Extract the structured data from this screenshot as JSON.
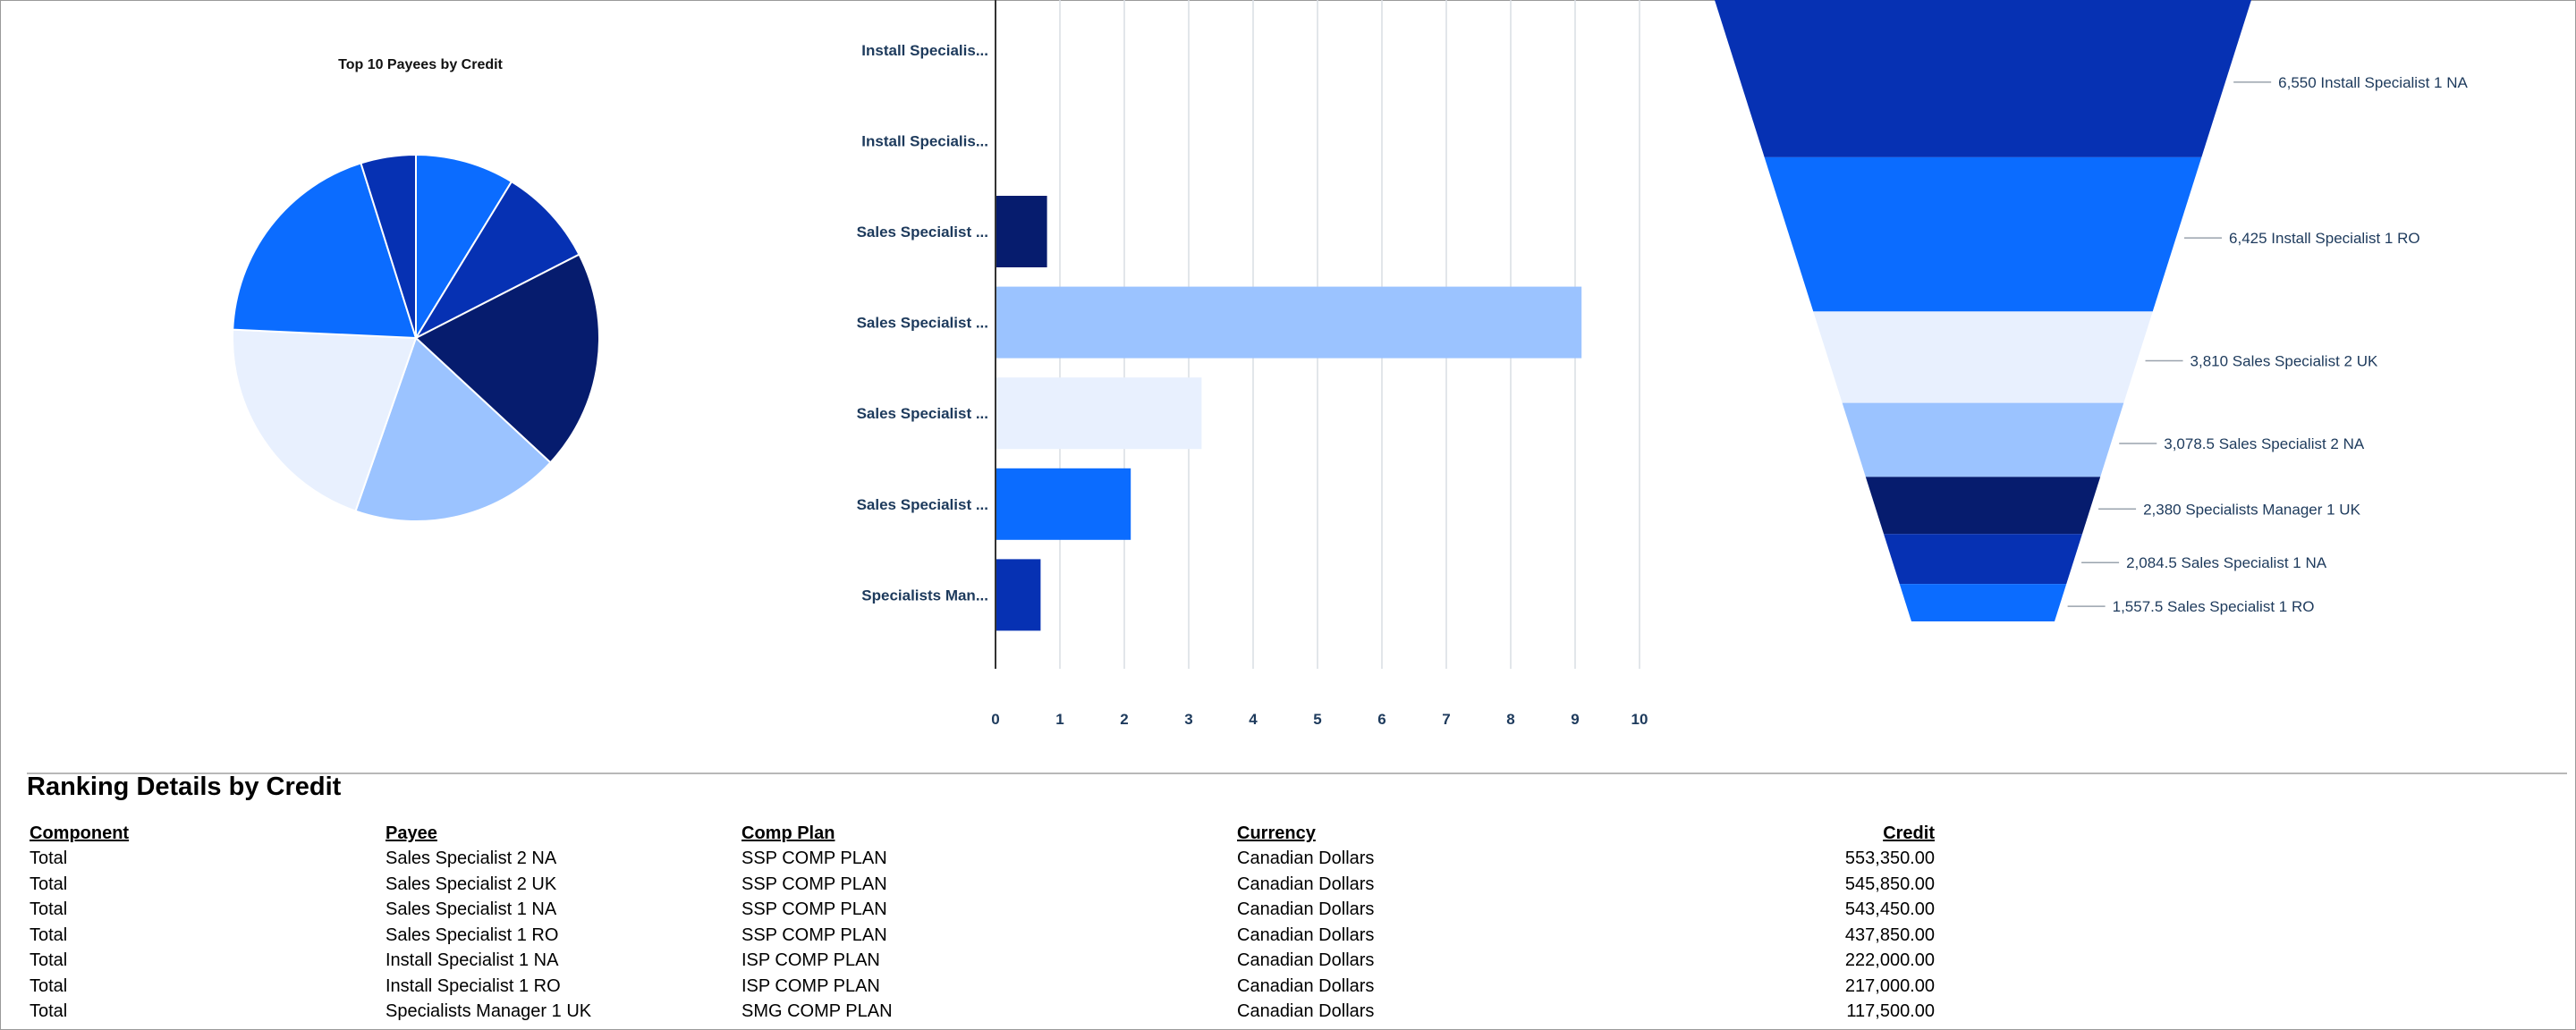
{
  "chart_data": [
    {
      "type": "pie",
      "title": "Top 10 Payees by Credit",
      "slices": [
        {
          "value": 9,
          "color": "#0b6cff"
        },
        {
          "value": 9,
          "color": "#0631b3"
        },
        {
          "value": 20,
          "color": "#061c6e"
        },
        {
          "value": 19,
          "color": "#9bc3ff"
        },
        {
          "value": 21,
          "color": "#e8f0fe"
        },
        {
          "value": 20,
          "color": "#0b6cff"
        },
        {
          "value": 5,
          "color": "#0631b3"
        }
      ]
    },
    {
      "type": "bar",
      "orientation": "horizontal",
      "categories": [
        "Install Specialis...",
        "Install Specialis...",
        "Sales Specialist ...",
        "Sales Specialist ...",
        "Sales Specialist ...",
        "Sales Specialist ...",
        "Specialists Man..."
      ],
      "values": [
        0,
        0,
        0.8,
        9.1,
        3.2,
        2.1,
        0.7
      ],
      "colors": [
        "#0b6cff",
        "#0631b3",
        "#061c6e",
        "#9bc3ff",
        "#e8f0fe",
        "#0b6cff",
        "#0631b3"
      ],
      "xlim": [
        0,
        10
      ],
      "xticks": [
        "0",
        "1",
        "2",
        "3",
        "4",
        "5",
        "6",
        "7",
        "8",
        "9",
        "10"
      ],
      "grid": true
    },
    {
      "type": "funnel",
      "values": [
        6550,
        6425,
        3810,
        3078.5,
        2380,
        2084.5,
        1557.5
      ],
      "labels": [
        "6,550 Install Specialist 1 NA",
        "6,425 Install Specialist 1 RO",
        "3,810 Sales Specialist 2 UK",
        "3,078.5 Sales Specialist 2 NA",
        "2,380 Specialists Manager 1 UK",
        "2,084.5 Sales Specialist 1 NA",
        "1,557.5 Sales Specialist 1 RO"
      ],
      "colors": [
        "#0631b3",
        "#0b6cff",
        "#e8f0fe",
        "#9bc3ff",
        "#061c6e",
        "#0631b3",
        "#0b6cff"
      ]
    }
  ],
  "ranking": {
    "title": "Ranking Details by Credit",
    "columns": [
      "Component",
      "Payee",
      "Comp Plan",
      "Currency",
      "Credit"
    ],
    "rows": [
      [
        "Total",
        "Sales Specialist 2 NA",
        "SSP COMP PLAN",
        "Canadian Dollars",
        "553,350.00"
      ],
      [
        "Total",
        "Sales Specialist 2 UK",
        "SSP COMP PLAN",
        "Canadian Dollars",
        "545,850.00"
      ],
      [
        "Total",
        "Sales Specialist 1 NA",
        "SSP COMP PLAN",
        "Canadian Dollars",
        "543,450.00"
      ],
      [
        "Total",
        "Sales Specialist 1 RO",
        "SSP COMP PLAN",
        "Canadian Dollars",
        "437,850.00"
      ],
      [
        "Total",
        "Install Specialist 1 NA",
        "ISP COMP PLAN",
        "Canadian Dollars",
        "222,000.00"
      ],
      [
        "Total",
        "Install Specialist 1 RO",
        "ISP COMP PLAN",
        "Canadian Dollars",
        "217,000.00"
      ],
      [
        "Total",
        "Specialists Manager 1 UK",
        "SMG COMP PLAN",
        "Canadian Dollars",
        "117,500.00"
      ]
    ]
  }
}
